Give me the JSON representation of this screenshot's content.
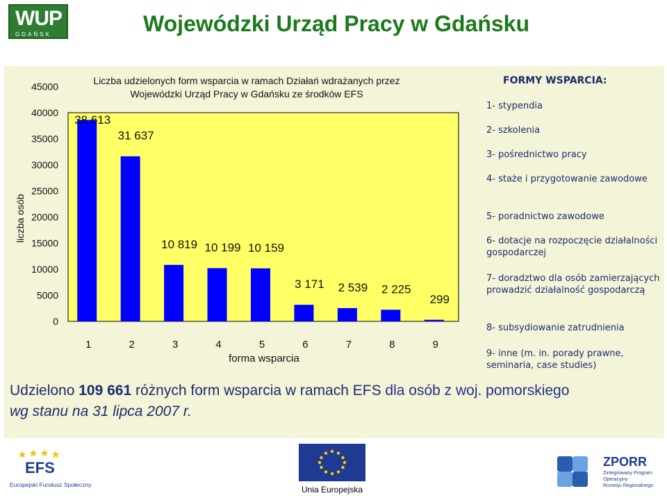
{
  "header": {
    "logo_text": "WUP",
    "logo_subtext": "GDAŃSK",
    "title": "Wojewódzki Urząd Pracy w Gdańsku"
  },
  "chart_data": {
    "type": "bar",
    "title_line1": "Liczba udzielonych form wsparcia w  ramach Działań wdrażanych przez",
    "title_line2": "Wojewódzki Urząd Pracy w Gdańsku ze środków EFS",
    "xlabel": "forma wsparcia",
    "ylabel": "liczba osób",
    "categories": [
      "1",
      "2",
      "3",
      "4",
      "5",
      "6",
      "7",
      "8",
      "9"
    ],
    "values": [
      38613,
      31637,
      10819,
      10199,
      10159,
      3171,
      2539,
      2225,
      299
    ],
    "data_labels": [
      "38 613",
      "31 637",
      "10 819",
      "10 199",
      "10 159",
      "3 171",
      "2 539",
      "2 225",
      "299"
    ],
    "y_ticks": [
      "0",
      "5000",
      "10000",
      "15000",
      "20000",
      "25000",
      "30000",
      "35000",
      "40000",
      "45000"
    ],
    "ylim": [
      0,
      45000
    ],
    "grid": false,
    "colors": {
      "bar": "#0000ff",
      "plot_background": "#ffff66",
      "panel_background": "#f4f4d8"
    }
  },
  "legend": {
    "title": "FORMY WSPARCIA:",
    "items": [
      "1- stypendia",
      "2- szkolenia",
      "3- pośrednictwo pracy",
      "4- staże i przygotowanie zawodowe",
      "5- poradnictwo zawodowe",
      "6- dotacje na rozpoczęcie działalności gospodarczej",
      "7- doradztwo dla osób zamierzających prowadzić działalność gospodarczą",
      "8- subsydiowanie zatrudnienia",
      "9- inne (m. in. porady prawne, seminaria, case studies)"
    ]
  },
  "summary": {
    "prefix": "Udzielono ",
    "count": "109 661",
    "middle": " różnych form wsparcia w ramach EFS ",
    "accent": "dla osób z woj. pomorskiego",
    "line2": "wg stanu na 31 lipca 2007 r."
  },
  "footer": {
    "efs_logo_text": "EFS",
    "efs_caption": "Europejski Fundusz Społeczny",
    "eu_caption": "Unia Europejska",
    "zporr_logo_text": "ZPORR",
    "zporr_caption_1": "Zintegrowany Program",
    "zporr_caption_2": "Operacyjny",
    "zporr_caption_3": "Rozwoju Regionalnego"
  }
}
